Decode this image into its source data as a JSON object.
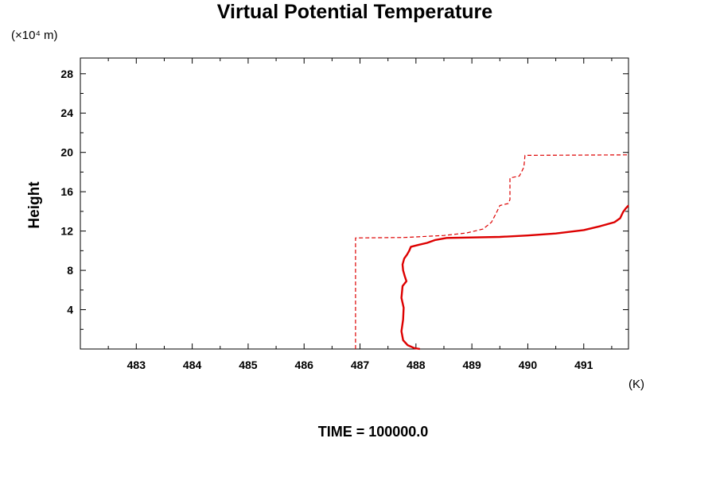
{
  "chart_data": {
    "type": "line",
    "title": "Virtual Potential Temperature",
    "ylabel": "Height",
    "y_unit_label": "(×10⁴ m)",
    "x_unit_label": "(K)",
    "footer": "TIME = 100000.0",
    "xlim": [
      482.0,
      491.8
    ],
    "ylim": [
      0,
      29.6
    ],
    "x_ticks": [
      "483",
      "484",
      "485",
      "486",
      "487",
      "488",
      "489",
      "490",
      "491"
    ],
    "y_ticks": [
      "4",
      "8",
      "12",
      "16",
      "20",
      "24",
      "28"
    ],
    "grid": false,
    "line_color": "#dd0000",
    "series": [
      {
        "style": "solid",
        "points": [
          [
            488.07,
            0.0
          ],
          [
            487.97,
            0.1
          ],
          [
            487.85,
            0.4
          ],
          [
            487.77,
            0.9
          ],
          [
            487.74,
            1.8
          ],
          [
            487.77,
            3.0
          ],
          [
            487.78,
            4.2
          ],
          [
            487.74,
            5.2
          ],
          [
            487.76,
            6.4
          ],
          [
            487.83,
            6.9
          ],
          [
            487.8,
            7.4
          ],
          [
            487.77,
            8.0
          ],
          [
            487.76,
            8.6
          ],
          [
            487.79,
            9.2
          ],
          [
            487.84,
            9.6
          ],
          [
            487.88,
            10.0
          ],
          [
            487.91,
            10.4
          ],
          [
            488.05,
            10.6
          ],
          [
            488.2,
            10.8
          ],
          [
            488.35,
            11.1
          ],
          [
            488.55,
            11.3
          ],
          [
            489.5,
            11.4
          ],
          [
            490.0,
            11.55
          ],
          [
            490.5,
            11.75
          ],
          [
            491.0,
            12.1
          ],
          [
            491.3,
            12.5
          ],
          [
            491.55,
            12.9
          ],
          [
            491.65,
            13.3
          ],
          [
            491.7,
            13.9
          ],
          [
            491.75,
            14.3
          ],
          [
            491.8,
            14.6
          ]
        ]
      },
      {
        "style": "dashed",
        "points": [
          [
            486.92,
            0.0
          ],
          [
            486.92,
            11.3
          ],
          [
            487.8,
            11.35
          ],
          [
            488.5,
            11.55
          ],
          [
            488.9,
            11.8
          ],
          [
            489.2,
            12.2
          ],
          [
            489.35,
            12.9
          ],
          [
            489.45,
            14.0
          ],
          [
            489.5,
            14.6
          ],
          [
            489.65,
            14.8
          ],
          [
            489.68,
            15.2
          ],
          [
            489.68,
            17.4
          ],
          [
            489.85,
            17.6
          ],
          [
            489.93,
            18.5
          ],
          [
            489.95,
            19.7
          ],
          [
            491.8,
            19.75
          ]
        ]
      }
    ]
  }
}
